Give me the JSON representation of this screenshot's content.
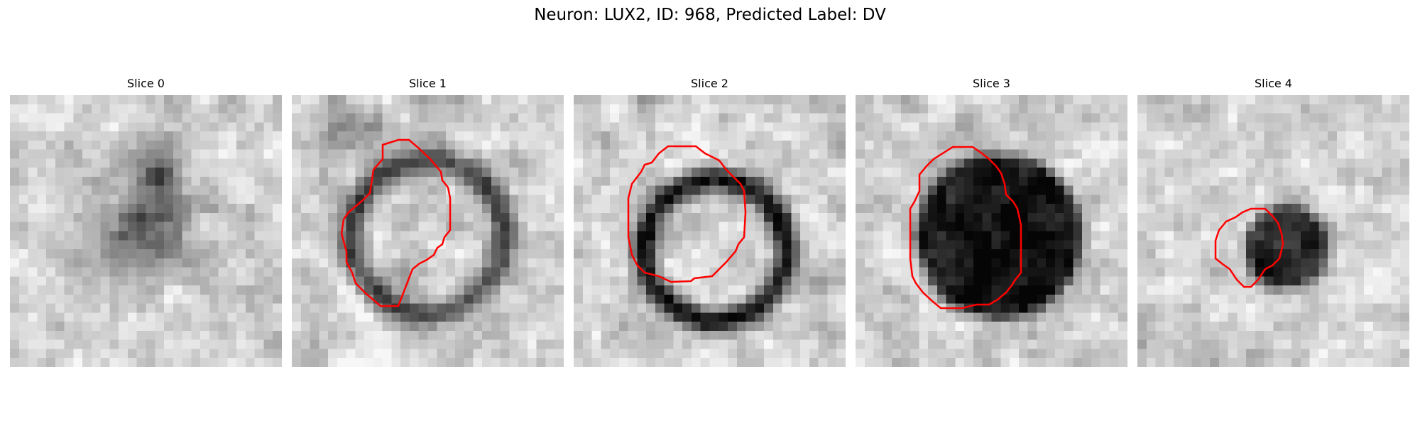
{
  "figure": {
    "title": "Neuron: LUX2, ID: 968, Predicted Label: DV"
  },
  "panels": [
    {
      "title": "Slice 0",
      "has_contour": false
    },
    {
      "title": "Slice 1",
      "has_contour": true
    },
    {
      "title": "Slice 2",
      "has_contour": true
    },
    {
      "title": "Slice 3",
      "has_contour": true
    },
    {
      "title": "Slice 4",
      "has_contour": true
    }
  ],
  "colors": {
    "contour": "#ff0000",
    "background": "#ffffff"
  },
  "colormap": "gray"
}
